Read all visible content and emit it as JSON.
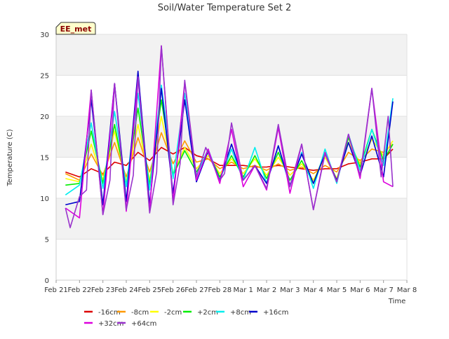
{
  "chart_data": {
    "type": "line",
    "title": "Soil/Water Temperature Set 2",
    "xlabel": "Time",
    "ylabel": "Temperature (C)",
    "station_label": "EE_met",
    "ylim": [
      0,
      30
    ],
    "yticks": [
      0,
      5,
      10,
      15,
      20,
      25,
      30
    ],
    "xlim": [
      0,
      15
    ],
    "xticks": [
      {
        "x": 0,
        "label": "Feb 21"
      },
      {
        "x": 1,
        "label": "Feb 22"
      },
      {
        "x": 2,
        "label": "Feb 23"
      },
      {
        "x": 3,
        "label": "Feb 24"
      },
      {
        "x": 4,
        "label": "Feb 25"
      },
      {
        "x": 5,
        "label": "Feb 26"
      },
      {
        "x": 6,
        "label": "Feb 27"
      },
      {
        "x": 7,
        "label": "Feb 28"
      },
      {
        "x": 8,
        "label": "Mar 1"
      },
      {
        "x": 9,
        "label": "Mar 2"
      },
      {
        "x": 10,
        "label": "Mar 3"
      },
      {
        "x": 11,
        "label": "Mar 4"
      },
      {
        "x": 12,
        "label": "Mar 5"
      },
      {
        "x": 13,
        "label": "Mar 6"
      },
      {
        "x": 14,
        "label": "Mar 7"
      },
      {
        "x": 15,
        "label": "Mar 8"
      }
    ],
    "grid": "horizontal bands",
    "legend_position": "bottom",
    "series": [
      {
        "name": "-16cm",
        "color": "#dd0000",
        "x": [
          0.4,
          1.0,
          1.5,
          2.0,
          2.5,
          3.0,
          3.5,
          4.0,
          4.5,
          5.0,
          5.5,
          6.0,
          6.5,
          7.0,
          7.5,
          8.0,
          8.5,
          9.0,
          9.5,
          10.0,
          10.5,
          11.0,
          11.5,
          12.0,
          12.5,
          13.0,
          13.5,
          14.0,
          14.4
        ],
        "y": [
          13.2,
          12.6,
          13.6,
          13.0,
          14.4,
          14.0,
          15.6,
          14.6,
          16.2,
          15.4,
          16.2,
          15.2,
          14.8,
          14.0,
          14.0,
          14.0,
          13.8,
          13.8,
          14.0,
          13.8,
          13.6,
          13.4,
          13.6,
          13.6,
          14.2,
          14.4,
          14.8,
          14.8,
          16.0
        ]
      },
      {
        "name": "-8cm",
        "color": "#ff9900",
        "x": [
          0.4,
          1.0,
          1.5,
          2.0,
          2.5,
          3.0,
          3.5,
          4.0,
          4.5,
          5.0,
          5.5,
          6.0,
          6.5,
          7.0,
          7.5,
          8.0,
          8.5,
          9.0,
          9.5,
          10.0,
          10.5,
          11.0,
          11.5,
          12.0,
          12.5,
          13.0,
          13.5,
          14.0,
          14.4
        ],
        "y": [
          13.0,
          12.2,
          15.4,
          12.8,
          16.8,
          12.6,
          17.4,
          13.2,
          18.0,
          14.2,
          17.0,
          14.4,
          14.8,
          13.6,
          14.4,
          13.6,
          14.0,
          13.4,
          14.2,
          13.4,
          13.8,
          13.0,
          14.0,
          13.2,
          15.6,
          14.6,
          16.0,
          15.6,
          16.6
        ]
      },
      {
        "name": "-2cm",
        "color": "#ffff00",
        "x": [
          0.4,
          1.0,
          1.5,
          2.0,
          2.5,
          3.0,
          3.5,
          4.0,
          4.5,
          5.0,
          5.5,
          6.0,
          6.5,
          7.0,
          7.5,
          8.0,
          8.5,
          9.0,
          9.5,
          10.0,
          10.5,
          11.0,
          11.5,
          12.0,
          12.5,
          13.0,
          13.5,
          14.0,
          14.4
        ],
        "y": [
          12.4,
          12.0,
          16.6,
          12.2,
          18.2,
          12.0,
          19.0,
          12.2,
          20.0,
          13.0,
          16.2,
          13.6,
          15.2,
          13.0,
          14.8,
          13.0,
          14.8,
          12.8,
          15.0,
          12.8,
          14.2,
          12.2,
          15.0,
          12.4,
          16.8,
          14.2,
          17.2,
          15.2,
          17.0
        ]
      },
      {
        "name": "+2cm",
        "color": "#00ee00",
        "x": [
          0.4,
          1.0,
          1.5,
          2.0,
          2.5,
          3.0,
          3.5,
          4.0,
          4.5,
          5.0,
          5.5,
          6.0,
          6.5,
          7.0,
          7.5,
          8.0,
          8.5,
          9.0,
          9.5,
          10.0,
          10.5,
          11.0,
          11.5,
          12.0,
          12.5,
          13.0,
          13.5,
          14.0,
          14.4
        ],
        "y": [
          11.6,
          11.8,
          18.2,
          11.8,
          19.0,
          11.6,
          21.0,
          11.6,
          22.0,
          12.8,
          15.8,
          13.2,
          15.6,
          12.6,
          15.2,
          12.6,
          15.2,
          12.4,
          15.6,
          12.2,
          14.6,
          11.8,
          15.6,
          12.2,
          17.4,
          13.8,
          18.4,
          14.6,
          16.6
        ]
      },
      {
        "name": "+8cm",
        "color": "#00eeee",
        "x": [
          0.4,
          1.0,
          1.5,
          2.0,
          2.5,
          3.0,
          3.5,
          4.0,
          4.5,
          5.0,
          5.5,
          6.0,
          6.5,
          7.0,
          7.5,
          8.0,
          8.5,
          9.0,
          9.5,
          10.0,
          10.5,
          11.0,
          11.5,
          12.0,
          12.5,
          13.0,
          13.5,
          14.0,
          14.4
        ],
        "y": [
          10.4,
          11.6,
          19.2,
          11.2,
          20.6,
          11.4,
          22.8,
          11.0,
          23.8,
          12.4,
          22.8,
          12.8,
          16.0,
          12.2,
          16.0,
          12.2,
          16.2,
          11.8,
          16.4,
          11.4,
          15.6,
          11.2,
          16.0,
          11.8,
          17.8,
          13.4,
          18.4,
          14.0,
          22.2
        ]
      },
      {
        "name": "+16cm",
        "color": "#0000cc",
        "x": [
          0.4,
          1.0,
          1.5,
          2.0,
          2.5,
          3.0,
          3.5,
          4.0,
          4.5,
          5.0,
          5.5,
          6.0,
          6.5,
          7.0,
          7.5,
          8.0,
          8.5,
          9.0,
          9.5,
          10.0,
          10.5,
          11.0,
          11.5,
          12.0,
          12.5,
          13.0,
          13.5,
          14.0,
          14.4
        ],
        "y": [
          9.2,
          9.6,
          22.0,
          9.2,
          24.0,
          9.6,
          25.5,
          9.2,
          23.4,
          10.6,
          22.0,
          12.0,
          15.8,
          12.2,
          16.6,
          12.2,
          14.0,
          11.8,
          16.4,
          11.6,
          15.4,
          11.8,
          15.4,
          12.2,
          16.8,
          12.8,
          17.6,
          12.6,
          21.8
        ]
      },
      {
        "name": "+32cm",
        "color": "#dd00dd",
        "x": [
          0.4,
          1.0,
          1.5,
          2.0,
          2.5,
          3.0,
          3.5,
          4.0,
          4.5,
          5.0,
          5.5,
          6.0,
          6.5,
          7.0,
          7.5,
          8.0,
          8.5,
          9.0,
          9.5,
          10.0,
          10.5,
          11.0,
          11.5,
          12.0,
          12.5,
          13.0,
          13.5,
          14.0,
          14.4
        ],
        "y": [
          8.8,
          7.6,
          23.2,
          8.0,
          24.0,
          8.4,
          24.8,
          8.4,
          28.6,
          9.6,
          24.2,
          12.2,
          16.0,
          11.8,
          18.4,
          11.4,
          14.0,
          11.0,
          18.6,
          10.6,
          16.6,
          8.6,
          15.6,
          12.0,
          17.8,
          12.4,
          23.4,
          12.0,
          11.4
        ]
      },
      {
        "name": "+64cm",
        "color": "#9933cc",
        "x": [
          0.4,
          0.6,
          1.0,
          1.3,
          1.5,
          2.0,
          2.3,
          2.5,
          3.0,
          3.3,
          3.5,
          4.0,
          4.3,
          4.5,
          5.0,
          5.3,
          5.5,
          6.0,
          6.4,
          7.0,
          7.2,
          7.5,
          8.0,
          8.5,
          9.0,
          9.5,
          10.0,
          10.5,
          11.0,
          11.5,
          12.0,
          12.5,
          13.0,
          13.5,
          13.9,
          14.2,
          14.4
        ],
        "y": [
          8.8,
          6.4,
          10.2,
          11.0,
          23.2,
          8.0,
          12.2,
          24.0,
          8.6,
          12.8,
          24.8,
          8.2,
          13.2,
          28.6,
          9.2,
          14.2,
          24.4,
          12.6,
          16.2,
          12.2,
          13.0,
          19.2,
          12.2,
          14.0,
          11.2,
          19.0,
          11.4,
          16.6,
          8.6,
          15.4,
          12.0,
          17.8,
          12.8,
          23.4,
          12.6,
          20.0,
          11.4
        ]
      }
    ]
  }
}
